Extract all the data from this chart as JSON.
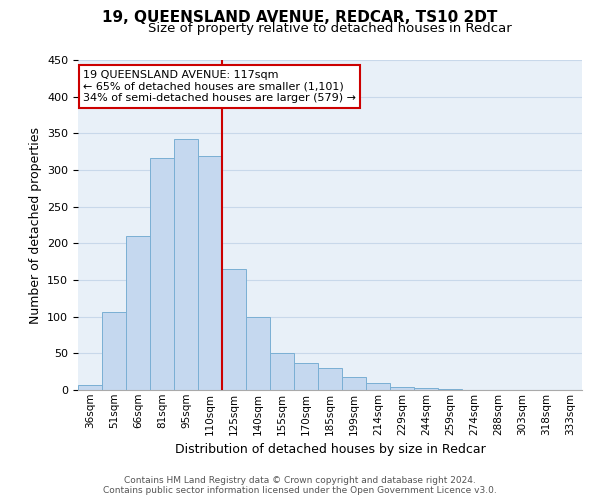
{
  "title": "19, QUEENSLAND AVENUE, REDCAR, TS10 2DT",
  "subtitle": "Size of property relative to detached houses in Redcar",
  "xlabel": "Distribution of detached houses by size in Redcar",
  "ylabel": "Number of detached properties",
  "bar_labels": [
    "36sqm",
    "51sqm",
    "66sqm",
    "81sqm",
    "95sqm",
    "110sqm",
    "125sqm",
    "140sqm",
    "155sqm",
    "170sqm",
    "185sqm",
    "199sqm",
    "214sqm",
    "229sqm",
    "244sqm",
    "259sqm",
    "274sqm",
    "288sqm",
    "303sqm",
    "318sqm",
    "333sqm"
  ],
  "bar_heights": [
    7,
    106,
    210,
    317,
    342,
    319,
    165,
    99,
    50,
    37,
    30,
    18,
    9,
    4,
    3,
    1,
    0,
    0,
    0,
    0,
    0
  ],
  "bar_color": "#c5d8ef",
  "bar_edge_color": "#7aafd4",
  "vline_x": 5.5,
  "vline_color": "#cc0000",
  "ylim": [
    0,
    450
  ],
  "yticks": [
    0,
    50,
    100,
    150,
    200,
    250,
    300,
    350,
    400,
    450
  ],
  "annotation_title": "19 QUEENSLAND AVENUE: 117sqm",
  "annotation_line1": "← 65% of detached houses are smaller (1,101)",
  "annotation_line2": "34% of semi-detached houses are larger (579) →",
  "annotation_box_color": "#ffffff",
  "annotation_box_edge": "#cc0000",
  "footer_line1": "Contains HM Land Registry data © Crown copyright and database right 2024.",
  "footer_line2": "Contains public sector information licensed under the Open Government Licence v3.0.",
  "grid_color": "#c8d8ea",
  "background_color": "#e8f0f8",
  "title_fontsize": 11,
  "subtitle_fontsize": 9.5,
  "ylabel_fontsize": 9,
  "xlabel_fontsize": 9,
  "tick_fontsize": 8,
  "xtick_fontsize": 7.5,
  "footer_fontsize": 6.5,
  "annot_fontsize": 8
}
